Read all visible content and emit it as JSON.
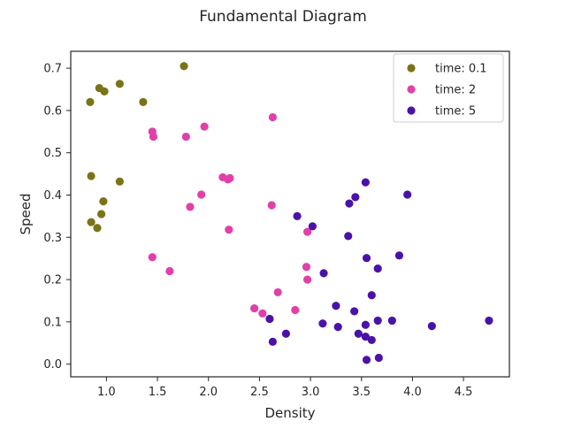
{
  "chart_data": {
    "type": "scatter",
    "title": "Fundamental Diagram",
    "xlabel": "Density",
    "ylabel": "Speed",
    "xlim": [
      0.65,
      4.95
    ],
    "ylim": [
      -0.03,
      0.74
    ],
    "xticks": [
      1.0,
      1.5,
      2.0,
      2.5,
      3.0,
      3.5,
      4.0,
      4.5
    ],
    "xtick_labels": [
      "1.0",
      "1.5",
      "2.0",
      "2.5",
      "3.0",
      "3.5",
      "4.0",
      "4.5"
    ],
    "yticks": [
      0.0,
      0.1,
      0.2,
      0.3,
      0.4,
      0.5,
      0.6,
      0.7
    ],
    "ytick_labels": [
      "0.0",
      "0.1",
      "0.2",
      "0.3",
      "0.4",
      "0.5",
      "0.6",
      "0.7"
    ],
    "grid": false,
    "legend_position": "top-right",
    "series": [
      {
        "name": "time: 0.1",
        "color": "#7a7417",
        "points": [
          [
            0.84,
            0.62
          ],
          [
            0.93,
            0.653
          ],
          [
            0.98,
            0.645
          ],
          [
            1.13,
            0.663
          ],
          [
            1.36,
            0.62
          ],
          [
            1.76,
            0.705
          ],
          [
            0.85,
            0.445
          ],
          [
            0.97,
            0.385
          ],
          [
            1.13,
            0.432
          ],
          [
            0.95,
            0.355
          ],
          [
            0.85,
            0.336
          ],
          [
            0.91,
            0.322
          ]
        ]
      },
      {
        "name": "time: 2",
        "color": "#e040a8",
        "points": [
          [
            1.45,
            0.55
          ],
          [
            1.46,
            0.538
          ],
          [
            1.78,
            0.538
          ],
          [
            1.96,
            0.562
          ],
          [
            2.63,
            0.584
          ],
          [
            2.14,
            0.442
          ],
          [
            2.19,
            0.437
          ],
          [
            2.21,
            0.44
          ],
          [
            1.93,
            0.401
          ],
          [
            1.82,
            0.372
          ],
          [
            2.62,
            0.376
          ],
          [
            2.2,
            0.318
          ],
          [
            2.97,
            0.313
          ],
          [
            1.45,
            0.253
          ],
          [
            1.62,
            0.22
          ],
          [
            2.96,
            0.23
          ],
          [
            2.97,
            0.2
          ],
          [
            2.68,
            0.17
          ],
          [
            2.45,
            0.132
          ],
          [
            2.53,
            0.12
          ],
          [
            2.85,
            0.128
          ]
        ]
      },
      {
        "name": "time: 5",
        "color": "#4a12a8",
        "points": [
          [
            3.54,
            0.43
          ],
          [
            3.95,
            0.401
          ],
          [
            3.44,
            0.395
          ],
          [
            3.38,
            0.38
          ],
          [
            2.87,
            0.35
          ],
          [
            3.02,
            0.326
          ],
          [
            3.37,
            0.303
          ],
          [
            3.55,
            0.251
          ],
          [
            3.87,
            0.257
          ],
          [
            3.66,
            0.226
          ],
          [
            3.13,
            0.215
          ],
          [
            3.6,
            0.163
          ],
          [
            3.25,
            0.138
          ],
          [
            3.43,
            0.125
          ],
          [
            2.6,
            0.107
          ],
          [
            3.66,
            0.103
          ],
          [
            3.8,
            0.103
          ],
          [
            4.75,
            0.103
          ],
          [
            3.12,
            0.096
          ],
          [
            3.54,
            0.093
          ],
          [
            3.27,
            0.088
          ],
          [
            4.19,
            0.09
          ],
          [
            2.76,
            0.072
          ],
          [
            3.47,
            0.072
          ],
          [
            3.54,
            0.065
          ],
          [
            3.6,
            0.057
          ],
          [
            2.63,
            0.053
          ],
          [
            3.67,
            0.015
          ],
          [
            3.55,
            0.01
          ]
        ]
      }
    ]
  }
}
